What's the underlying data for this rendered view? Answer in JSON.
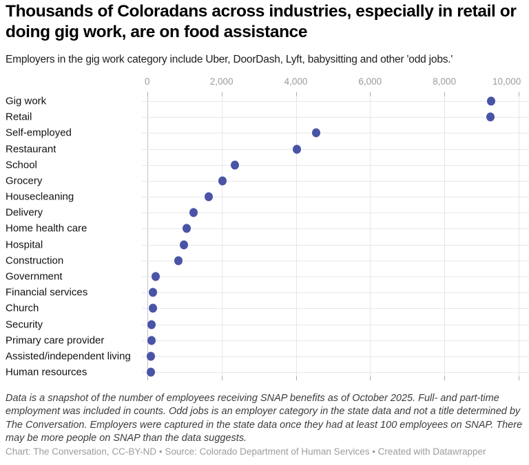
{
  "chart_data": {
    "type": "scatter",
    "variant": "horizontal-dot-plot",
    "title": "Thousands of Coloradans across industries, especially in retail or doing gig work, are on food assistance",
    "subtitle": "Employers in the gig work category include Uber, DoorDash, Lyft, babysitting and other 'odd jobs.'",
    "categories": [
      "Gig work",
      "Retail",
      "Self-employed",
      "Restaurant",
      "School",
      "Grocery",
      "Housecleaning",
      "Delivery",
      "Home health care",
      "Hospital",
      "Construction",
      "Government",
      "Financial services",
      "Church",
      "Security",
      "Primary care provider",
      "Assisted/independent living",
      "Human resources"
    ],
    "values": [
      9260,
      9240,
      4550,
      4020,
      2350,
      2030,
      1660,
      1240,
      1060,
      980,
      840,
      230,
      160,
      160,
      120,
      115,
      90,
      100
    ],
    "xlabel": "",
    "ylabel": "",
    "xlim": [
      0,
      10000
    ],
    "x_tick_values": [
      0,
      2000,
      4000,
      6000,
      8000,
      10000
    ],
    "x_tick_labels": [
      "0",
      "2,000",
      "4,000",
      "6,000",
      "8,000",
      "10,000"
    ],
    "grid": true,
    "legend": "none",
    "dot_color": "#4a54a6"
  },
  "footer": {
    "note": "Data is a snapshot of the number of employees receiving SNAP benefits as of October 2025. Full- and part-time employment was included in counts. Odd jobs is an employer category in the state data and not a title determined by The Conversation. Employers were captured in the state data once they had at least 100 employees on SNAP. There may be more people on SNAP than the data suggests.",
    "credit": "Chart: The Conversation, CC-BY-ND • Source: Colorado Department of Human Services • Created with Datawrapper"
  }
}
